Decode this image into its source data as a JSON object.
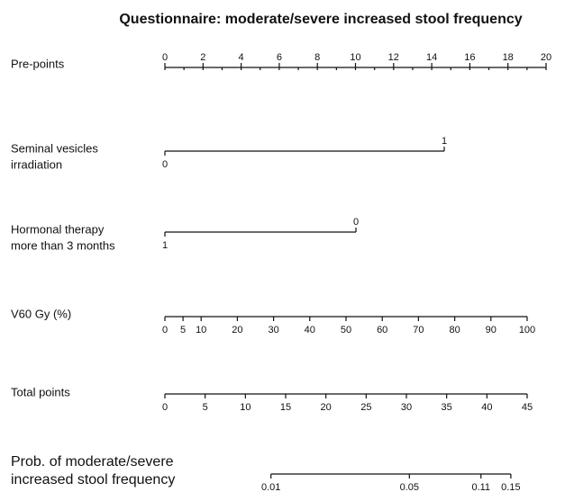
{
  "chart_data": {
    "type": "nomogram",
    "title": "Questionnaire: moderate/severe increased stool frequency",
    "axes": [
      {
        "label": [
          "Pre-points"
        ],
        "xlim": [
          0,
          20
        ],
        "xticks": [
          0,
          2,
          4,
          6,
          8,
          10,
          12,
          14,
          16,
          18,
          20
        ]
      },
      {
        "label": [
          "Seminal vesicles",
          "irradiation"
        ],
        "xlim": [
          0,
          1
        ],
        "xticks": [
          0,
          1
        ]
      },
      {
        "label": [
          "Hormonal therapy",
          "more than 3 months"
        ],
        "xlim": [
          1,
          0
        ],
        "xticks": [
          1,
          0
        ]
      },
      {
        "label": [
          "V60 Gy (%)"
        ],
        "xlim": [
          0,
          100
        ],
        "xticks": [
          0,
          5,
          10,
          20,
          30,
          40,
          50,
          60,
          70,
          80,
          90,
          100
        ]
      },
      {
        "label": [
          "Total points"
        ],
        "xlim": [
          0,
          45
        ],
        "xticks": [
          0,
          5,
          10,
          15,
          20,
          25,
          30,
          35,
          40,
          45
        ]
      },
      {
        "label": [
          "Prob. of moderate/severe",
          "increased stool frequency"
        ],
        "scale": "logit",
        "xticks": [
          0.01,
          0.05,
          0.11,
          0.15
        ]
      }
    ]
  }
}
